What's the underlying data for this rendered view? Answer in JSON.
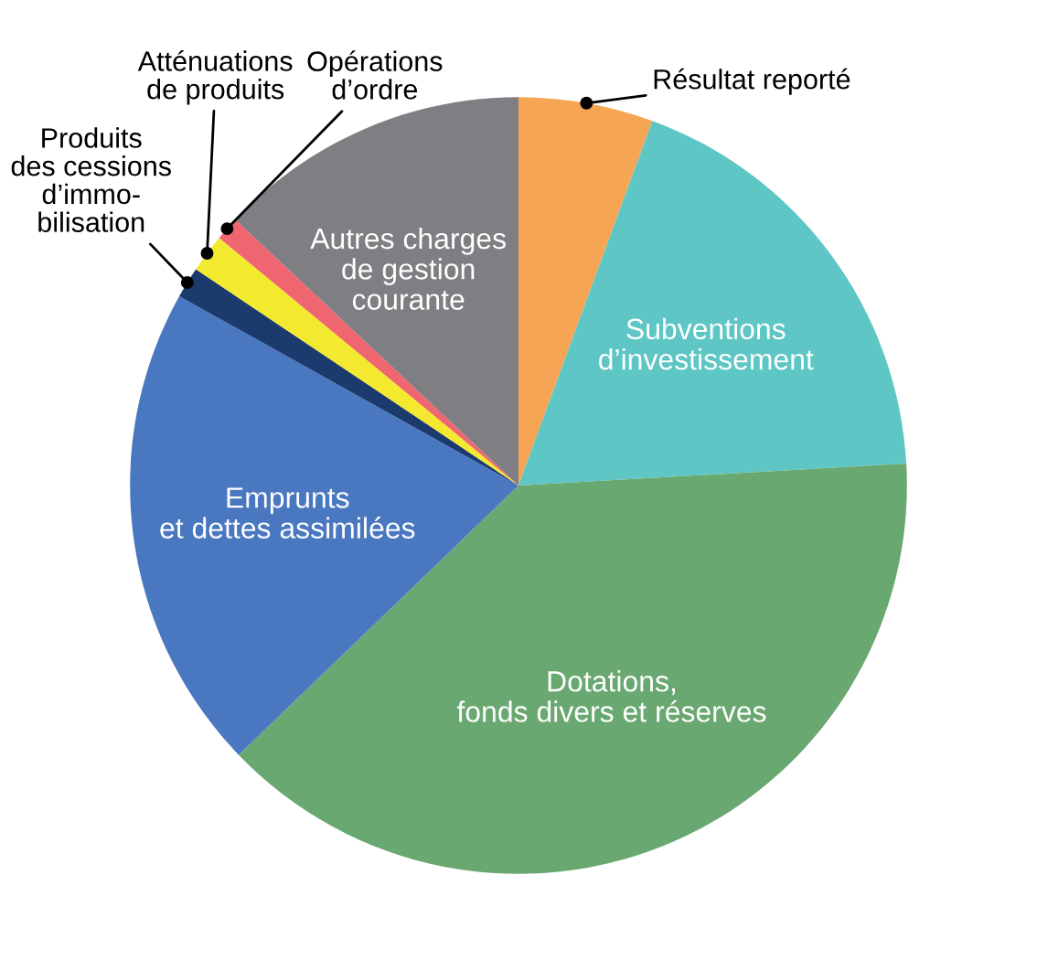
{
  "chart_data": {
    "type": "pie",
    "categories": [
      "Résultat reporté",
      "Subventions\nd’investissement",
      "Dotations,\nfonds divers et réserves",
      "Emprunts\net dettes assimilées",
      "Produits\ndes cessions\nd’immo-\nbilisation",
      "Atténuations\nde produits",
      "Opérations\nd’ordre",
      "Autres charges\nde gestion\ncourante"
    ],
    "values": [
      5.6,
      18.5,
      38.7,
      20.3,
      1.3,
      1.6,
      1.0,
      13.0
    ],
    "colors": [
      "#f5a553",
      "#5ec6c4",
      "#6aa872",
      "#4a78c0",
      "#1b3a6e",
      "#f3e92e",
      "#ef6570",
      "#7f7f83"
    ]
  }
}
